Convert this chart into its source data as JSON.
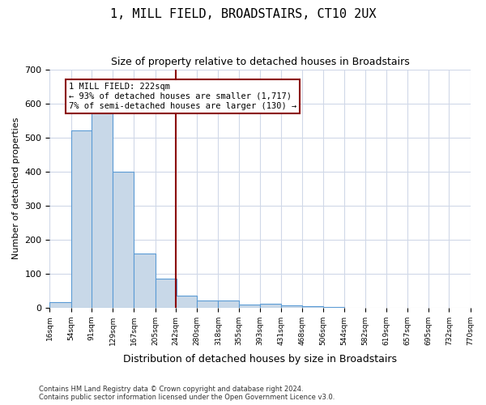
{
  "title": "1, MILL FIELD, BROADSTAIRS, CT10 2UX",
  "subtitle": "Size of property relative to detached houses in Broadstairs",
  "xlabel": "Distribution of detached houses by size in Broadstairs",
  "ylabel": "Number of detached properties",
  "bar_values": [
    15,
    520,
    580,
    400,
    160,
    85,
    35,
    20,
    22,
    10,
    12,
    7,
    5,
    3
  ],
  "bin_edges": [
    16,
    54,
    91,
    129,
    167,
    205,
    242,
    280,
    318,
    355,
    393,
    431,
    468,
    506,
    544
  ],
  "tick_labels": [
    "16sqm",
    "54sqm",
    "91sqm",
    "129sqm",
    "167sqm",
    "205sqm",
    "242sqm",
    "280sqm",
    "318sqm",
    "355sqm",
    "393sqm",
    "431sqm",
    "468sqm",
    "506sqm",
    "544sqm",
    "582sqm",
    "619sqm",
    "657sqm",
    "695sqm",
    "732sqm",
    "770sqm"
  ],
  "all_bin_edges": [
    16,
    54,
    91,
    129,
    167,
    205,
    242,
    280,
    318,
    355,
    393,
    431,
    468,
    506,
    544,
    582,
    619,
    657,
    695,
    732,
    770
  ],
  "all_bar_values": [
    15,
    520,
    580,
    400,
    160,
    85,
    35,
    20,
    22,
    10,
    12,
    7,
    5,
    3,
    0,
    0,
    0,
    0,
    0,
    0
  ],
  "property_size": 222,
  "vline_x": 242,
  "bar_color": "#c8d8e8",
  "bar_edge_color": "#5b9bd5",
  "vline_color": "#8b0000",
  "annotation_text": "1 MILL FIELD: 222sqm\n← 93% of detached houses are smaller (1,717)\n7% of semi-detached houses are larger (130) →",
  "annotation_box_color": "#ffffff",
  "annotation_box_edge_color": "#8b0000",
  "footer_text": "Contains HM Land Registry data © Crown copyright and database right 2024.\nContains public sector information licensed under the Open Government Licence v3.0.",
  "ylim": [
    0,
    700
  ],
  "yticks": [
    0,
    100,
    200,
    300,
    400,
    500,
    600,
    700
  ],
  "background_color": "#ffffff",
  "grid_color": "#d0d8e8"
}
